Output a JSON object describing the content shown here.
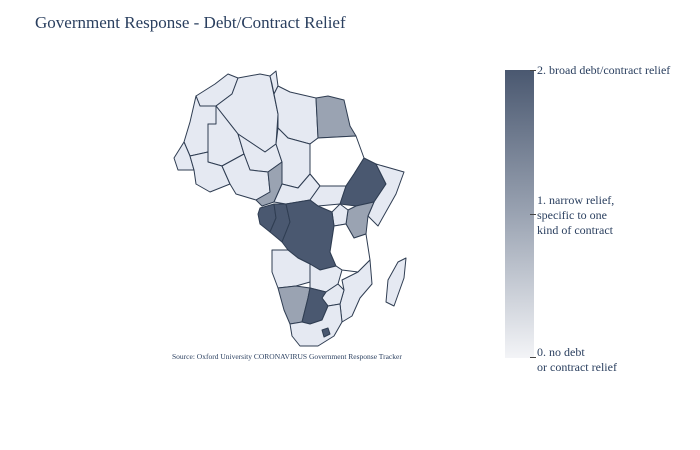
{
  "title": "Government Response - Debt/Contract Relief",
  "source": "Source:  Oxford University CORONAVIRUS Government Response Tracker",
  "colorbar": {
    "colors": {
      "high": "#4a5870",
      "mid": "#9aa3b2",
      "low": "#f3f4f7"
    },
    "labels": [
      {
        "text": "2. broad debt/contract relief",
        "value": 2
      },
      {
        "text": "1. narrow relief,\nspecific to one\n kind of contract",
        "value": 1
      },
      {
        "text": "0. no debt\nor contract relief",
        "value": 0
      }
    ]
  },
  "countries": [
    {
      "name": "Morocco",
      "level": 0
    },
    {
      "name": "Algeria",
      "level": 0
    },
    {
      "name": "Tunisia",
      "level": 0
    },
    {
      "name": "Libya",
      "level": 0
    },
    {
      "name": "Egypt",
      "level": 1
    },
    {
      "name": "Mauritania",
      "level": 0
    },
    {
      "name": "Mali",
      "level": 0
    },
    {
      "name": "Niger",
      "level": 0
    },
    {
      "name": "Chad",
      "level": 0
    },
    {
      "name": "Sudan",
      "level": null
    },
    {
      "name": "Senegal",
      "level": 0
    },
    {
      "name": "Burkina Faso",
      "level": 0
    },
    {
      "name": "Nigeria",
      "level": 0
    },
    {
      "name": "Cameroon",
      "level": 1
    },
    {
      "name": "Central African Republic",
      "level": 0
    },
    {
      "name": "South Sudan",
      "level": 0
    },
    {
      "name": "Ethiopia",
      "level": 2
    },
    {
      "name": "Somalia",
      "level": 0
    },
    {
      "name": "Kenya",
      "level": 1
    },
    {
      "name": "Gabon",
      "level": 2
    },
    {
      "name": "Republic of the Congo",
      "level": 2
    },
    {
      "name": "DR Congo",
      "level": 2
    },
    {
      "name": "Uganda",
      "level": 0
    },
    {
      "name": "Tanzania",
      "level": null
    },
    {
      "name": "Angola",
      "level": 0
    },
    {
      "name": "Zambia",
      "level": 0
    },
    {
      "name": "Mozambique",
      "level": 0
    },
    {
      "name": "Namibia",
      "level": 1
    },
    {
      "name": "Botswana",
      "level": 2
    },
    {
      "name": "Zimbabwe",
      "level": 0
    },
    {
      "name": "South Africa",
      "level": 0
    },
    {
      "name": "Lesotho",
      "level": 2
    },
    {
      "name": "Madagascar",
      "level": 0
    }
  ]
}
